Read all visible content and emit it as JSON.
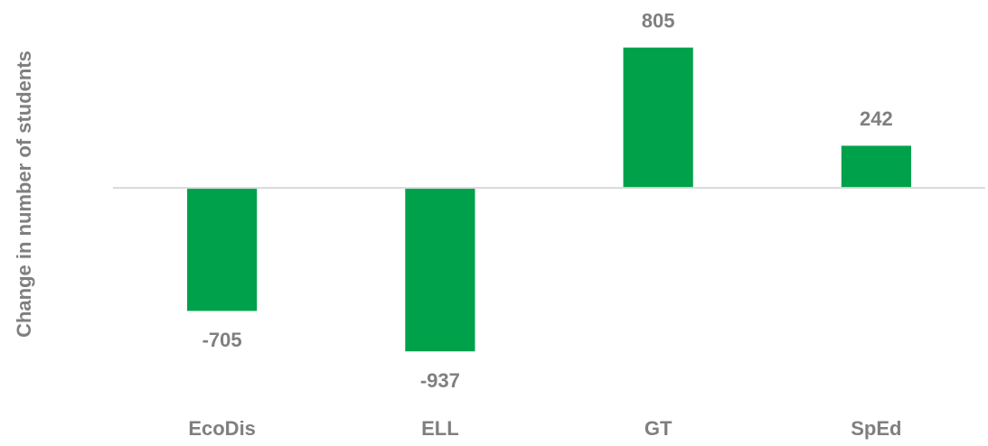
{
  "chart_data": {
    "type": "bar",
    "y_label": "Change in number of students",
    "categories": [
      "EcoDis",
      "ELL",
      "GT",
      "SpEd"
    ],
    "values": [
      -705,
      -937,
      805,
      242
    ],
    "color": "#00a14b",
    "ylim": [
      -1200,
      1000
    ]
  }
}
